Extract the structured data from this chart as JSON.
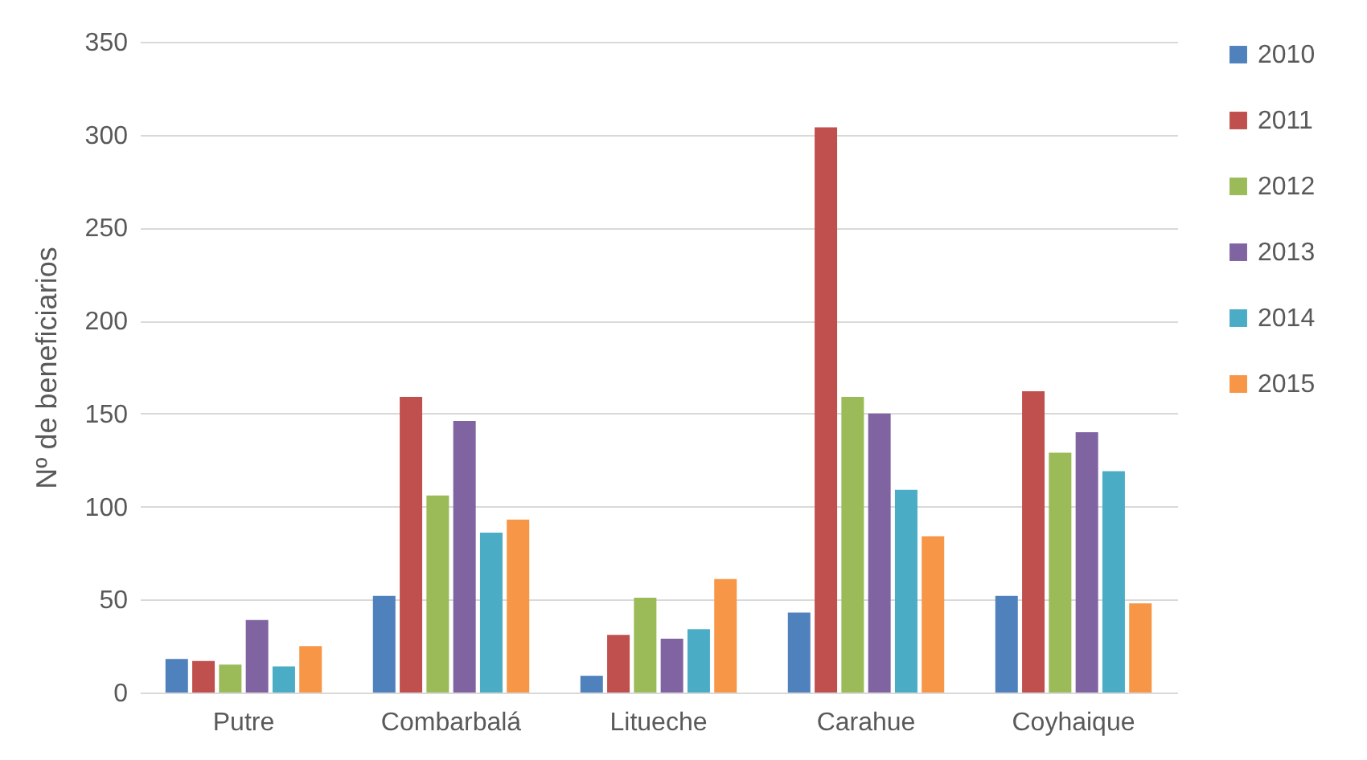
{
  "chart_data": {
    "type": "bar",
    "ylabel": "Nº de beneficiarios",
    "categories": [
      "Putre",
      "Combarbalá",
      "Litueche",
      "Carahue",
      "Coyhaique"
    ],
    "series": [
      {
        "name": "2010",
        "color": "#4f81bd",
        "values": [
          18,
          52,
          9,
          43,
          52
        ]
      },
      {
        "name": "2011",
        "color": "#c0504d",
        "values": [
          17,
          159,
          31,
          304,
          162
        ]
      },
      {
        "name": "2012",
        "color": "#9bbb59",
        "values": [
          15,
          106,
          51,
          159,
          129
        ]
      },
      {
        "name": "2013",
        "color": "#8064a2",
        "values": [
          39,
          146,
          29,
          150,
          140
        ]
      },
      {
        "name": "2014",
        "color": "#4bacc6",
        "values": [
          14,
          86,
          34,
          109,
          119
        ]
      },
      {
        "name": "2015",
        "color": "#f79646",
        "values": [
          25,
          93,
          61,
          84,
          48
        ]
      }
    ],
    "ylim": [
      0,
      350
    ],
    "yticks": [
      0,
      50,
      100,
      150,
      200,
      250,
      300,
      350
    ],
    "grid": "y",
    "legend": "right"
  }
}
